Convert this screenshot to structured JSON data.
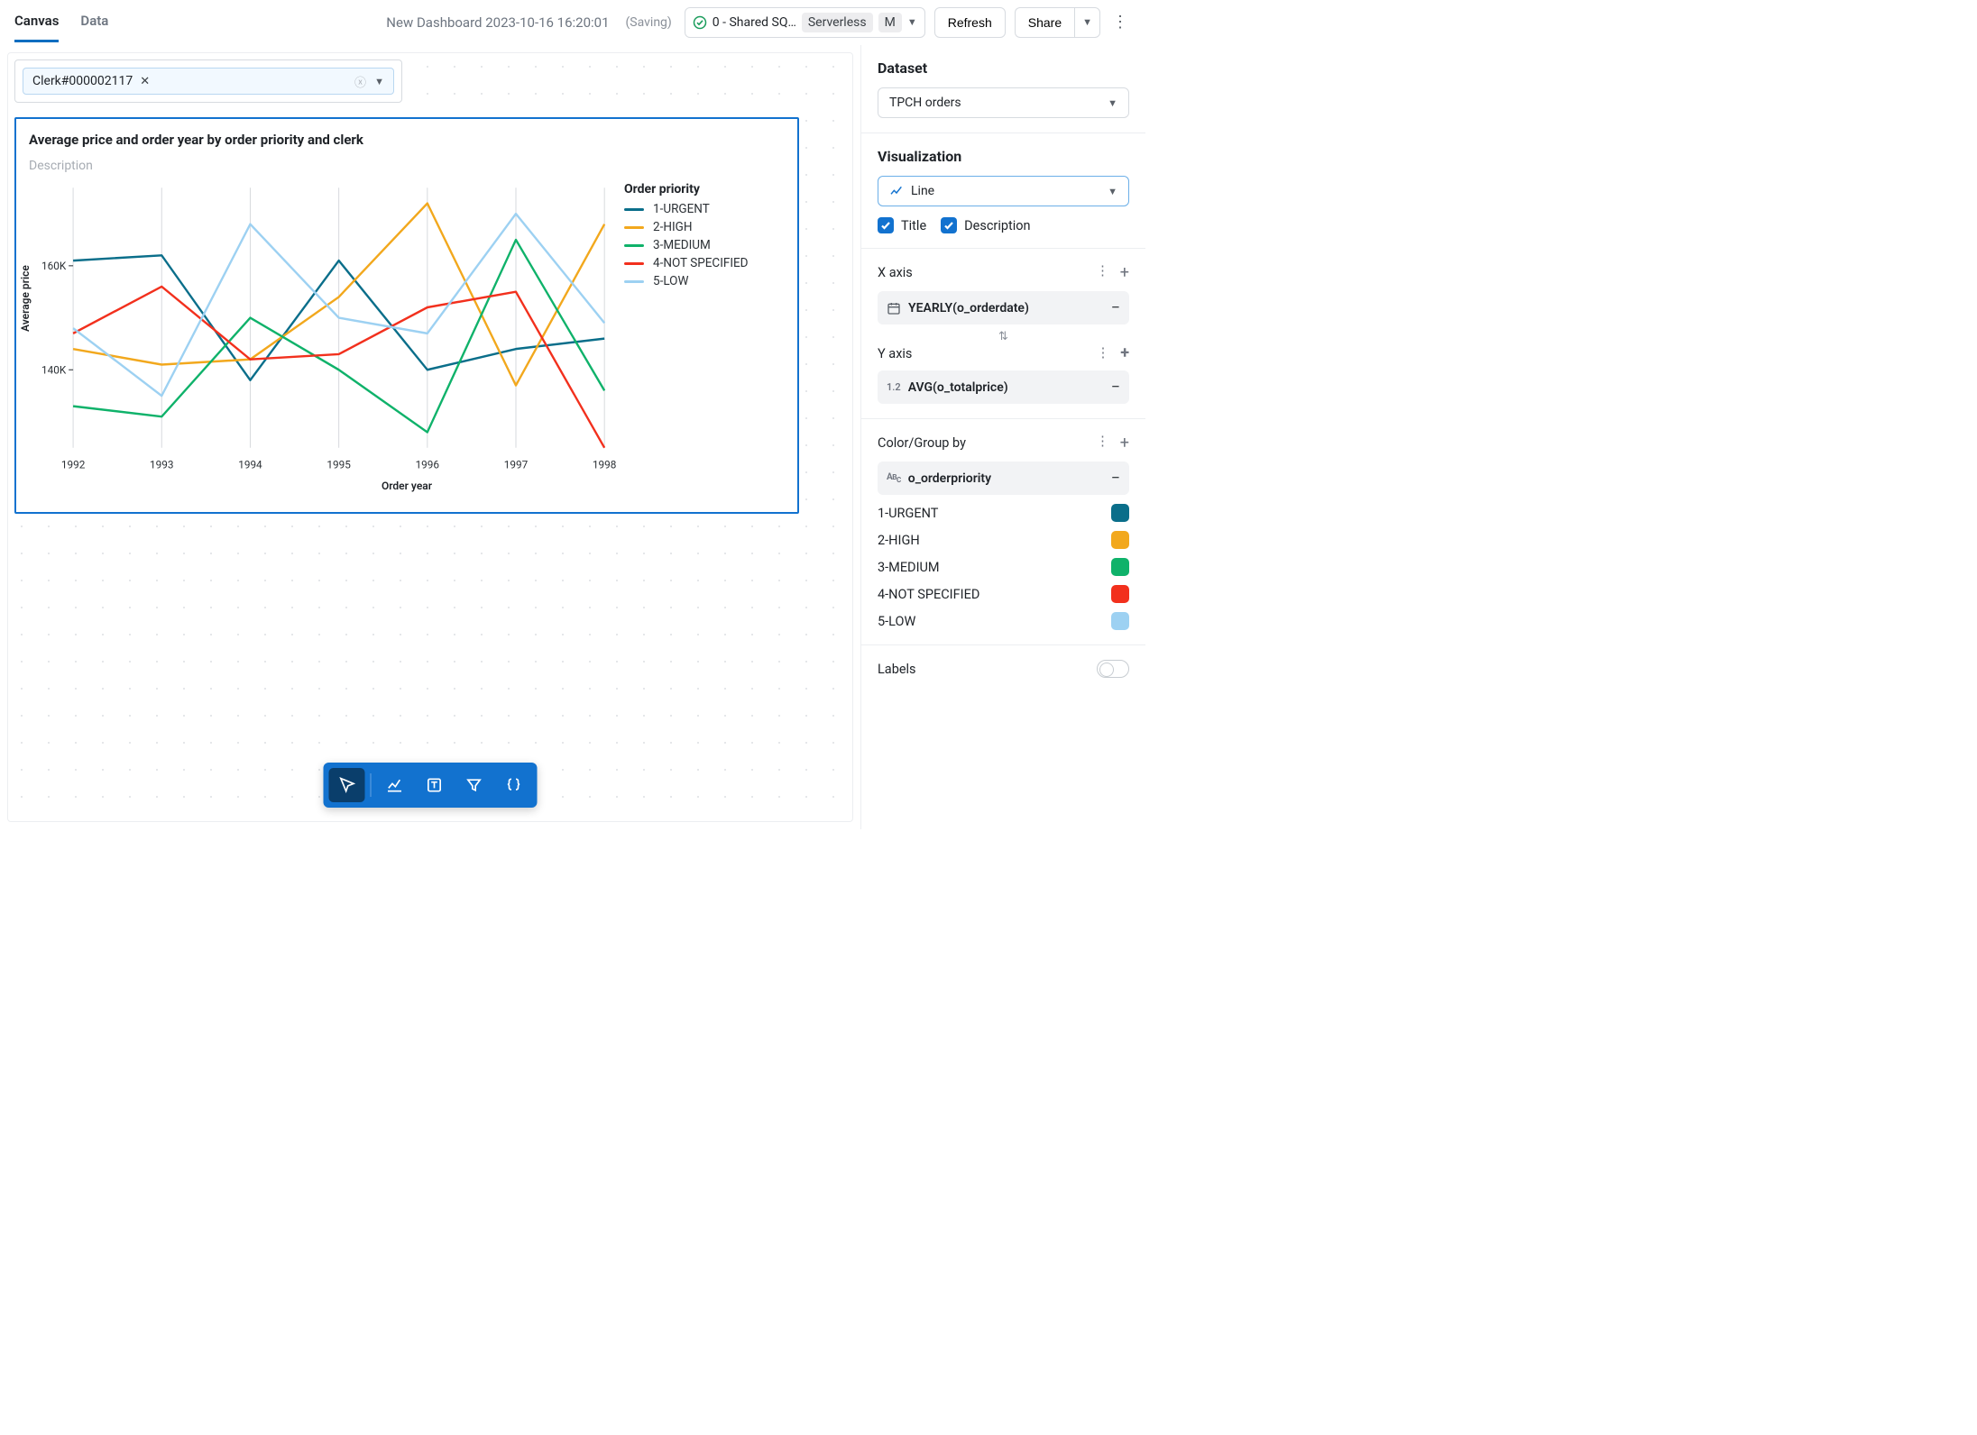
{
  "tabs": {
    "canvas": "Canvas",
    "data": "Data"
  },
  "header": {
    "title": "New Dashboard 2023-10-16 16:20:01",
    "status": "(Saving)",
    "compute_name": "0 - Shared SQ…",
    "compute_type": "Serverless",
    "compute_size": "M",
    "refresh": "Refresh",
    "share": "Share"
  },
  "filter": {
    "chip_label": "Clerk#000002117"
  },
  "chart": {
    "title": "Average price and order year by order priority and clerk",
    "desc": "Description",
    "type": "line",
    "x_label": "Order year",
    "y_label": "Average price",
    "legend_title": "Order priority",
    "x_categories": [
      "1992",
      "1993",
      "1994",
      "1995",
      "1996",
      "1997",
      "1998"
    ],
    "y_ticks": [
      140,
      160
    ],
    "y_tick_labels": [
      "140K",
      "160K"
    ],
    "ylim": [
      125,
      175
    ],
    "grid_color": "#d6d9dd",
    "series": [
      {
        "name": "1-URGENT",
        "color": "#0a6e8a",
        "values": [
          161,
          162,
          138,
          161,
          140,
          144,
          146
        ]
      },
      {
        "name": "2-HIGH",
        "color": "#f2a81d",
        "values": [
          144,
          141,
          142,
          154,
          172,
          137,
          168
        ]
      },
      {
        "name": "3-MEDIUM",
        "color": "#0fb26a",
        "values": [
          133,
          131,
          150,
          140,
          128,
          165,
          136
        ]
      },
      {
        "name": "4-NOT SPECIFIED",
        "color": "#f2301d",
        "values": [
          147,
          156,
          142,
          143,
          152,
          155,
          125
        ]
      },
      {
        "name": "5-LOW",
        "color": "#9dd1f2",
        "values": [
          148,
          135,
          168,
          150,
          147,
          170,
          149
        ]
      }
    ]
  },
  "toolbar_icons": [
    "pointer",
    "chart",
    "text",
    "filter",
    "braces"
  ],
  "sidebar": {
    "dataset_h": "Dataset",
    "dataset_value": "TPCH orders",
    "viz_h": "Visualization",
    "viz_value": "Line",
    "title_label": "Title",
    "desc_label": "Description",
    "xaxis_h": "X axis",
    "xaxis_field": "YEARLY(o_orderdate)",
    "yaxis_h": "Y axis",
    "yaxis_field": "AVG(o_totalprice)",
    "yaxis_prefix": "1.2",
    "color_h": "Color/Group by",
    "color_field": "o_orderpriority",
    "color_items": [
      {
        "label": "1-URGENT",
        "color": "#0a6e8a"
      },
      {
        "label": "2-HIGH",
        "color": "#f2a81d"
      },
      {
        "label": "3-MEDIUM",
        "color": "#0fb26a"
      },
      {
        "label": "4-NOT SPECIFIED",
        "color": "#f2301d"
      },
      {
        "label": "5-LOW",
        "color": "#9dd1f2"
      }
    ],
    "labels_h": "Labels"
  }
}
